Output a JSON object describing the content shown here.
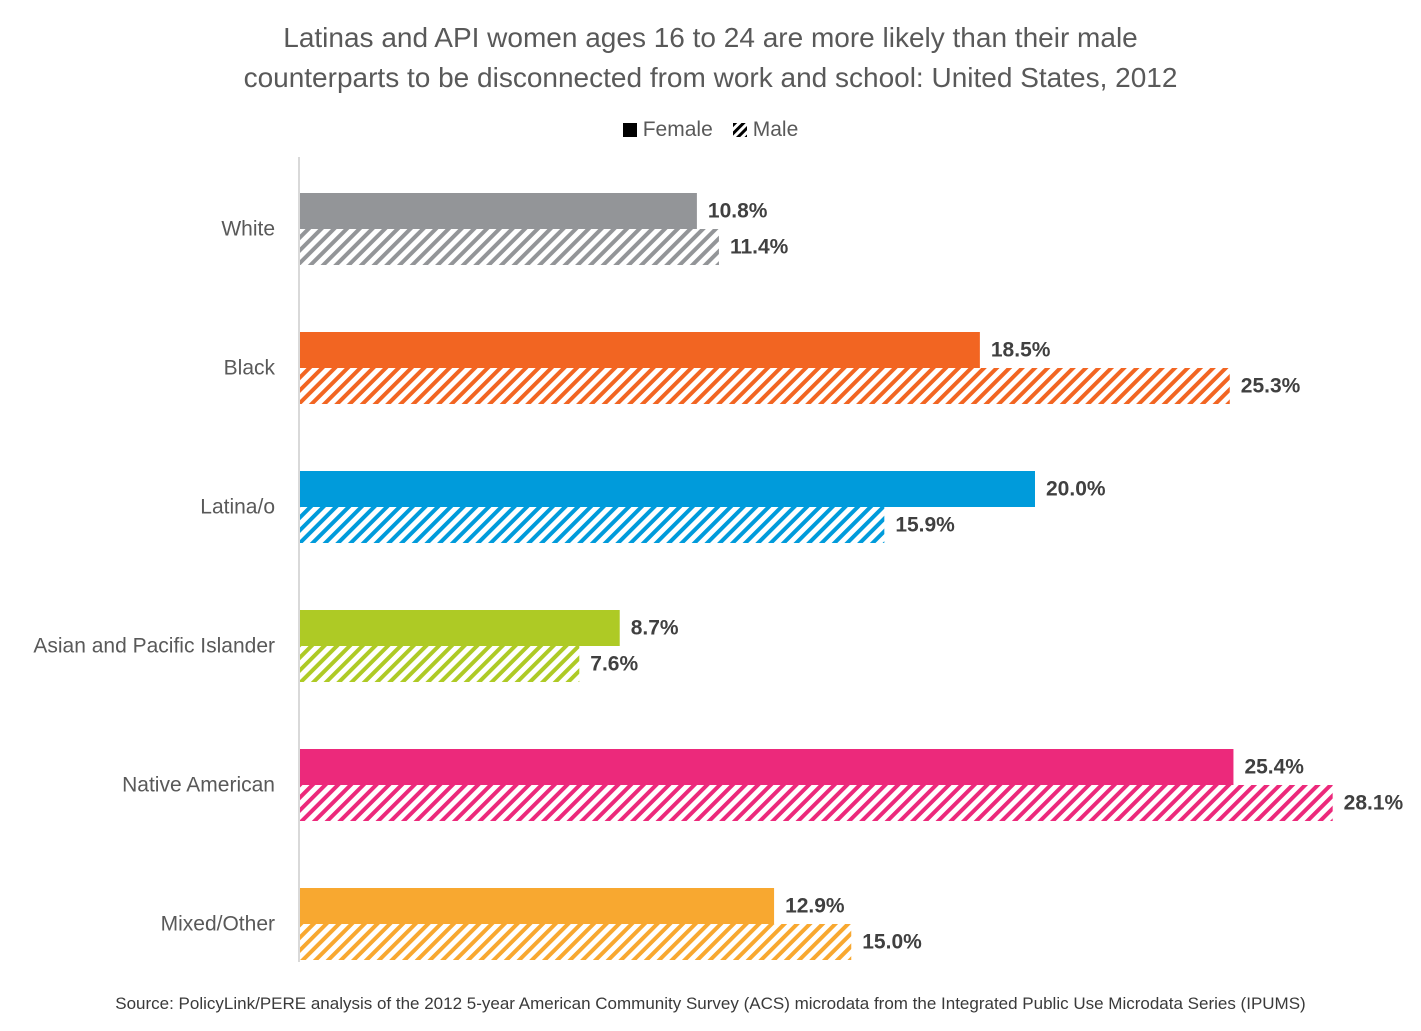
{
  "chart_data": {
    "type": "bar",
    "orientation": "horizontal",
    "title": "Latinas and API women ages 16 to 24 are more likely than their male counterparts to be disconnected from work and school: United States, 2012",
    "title_lines": [
      "Latinas and API women ages 16 to 24 are more likely than their male",
      "counterparts to be disconnected from work and school: United States, 2012"
    ],
    "legend_position": "top-center",
    "grid": false,
    "xlim": [
      0,
      30
    ],
    "categories": [
      "White",
      "Black",
      "Latina/o",
      "Asian and Pacific Islander",
      "Native American",
      "Mixed/Other"
    ],
    "category_colors": [
      "#939598",
      "#F26522",
      "#009BDB",
      "#AECA25",
      "#EC297B",
      "#F8A830"
    ],
    "series": [
      {
        "name": "Female",
        "pattern": "solid",
        "values": [
          10.8,
          18.5,
          20.0,
          8.7,
          25.4,
          12.9
        ],
        "labels": [
          "10.8%",
          "18.5%",
          "20.0%",
          "8.7%",
          "25.4%",
          "12.9%"
        ]
      },
      {
        "name": "Male",
        "pattern": "hatched",
        "values": [
          11.4,
          25.3,
          15.9,
          7.6,
          28.1,
          15.0
        ],
        "labels": [
          "11.4%",
          "25.3%",
          "15.9%",
          "7.6%",
          "28.1%",
          "15.0%"
        ]
      }
    ],
    "source": "Source: PolicyLink/PERE analysis of the 2012 5-year American Community Survey (ACS) microdata from the Integrated Public Use Microdata Series (IPUMS)"
  }
}
